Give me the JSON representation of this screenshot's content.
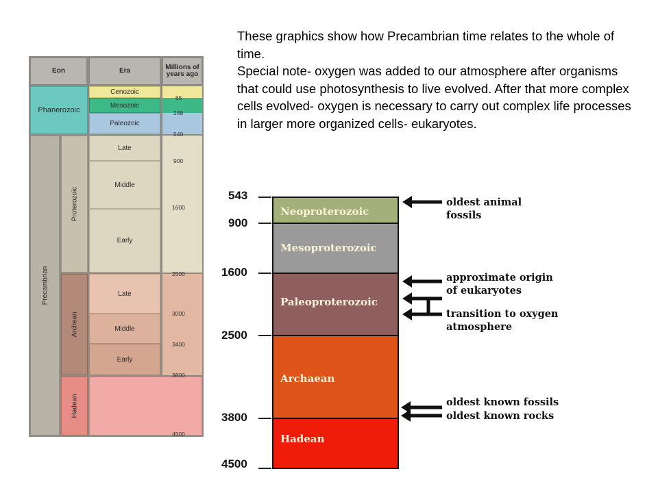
{
  "note": {
    "line1": "These graphics show how Precambrian time relates to the whole of time.",
    "line2": "Special note- oxygen was added to our atmosphere after organisms that could use photosynthesis to live evolved.  After that more complex cells evolved- oxygen is necessary to carry out complex life processes in larger more organized cells- eukaryotes."
  },
  "geo_table": {
    "headers": {
      "eon": "Eon",
      "era": "Era",
      "myr": "Millions of years ago"
    },
    "eons": {
      "phanerozoic": "Phanerozoic",
      "precambrian": "Precambrian"
    },
    "subeons": {
      "proterozoic": "Proterozoic",
      "archean": "Archean",
      "hadean": "Hadean"
    },
    "eras": {
      "cenozoic": "Cenozoic",
      "mesozoic": "Mesozoic",
      "paleozoic": "Paleozoic",
      "prot_late": "Late",
      "prot_middle": "Middle",
      "prot_early": "Early",
      "arch_late": "Late",
      "arch_middle": "Middle",
      "arch_early": "Early"
    },
    "years": {
      "y65": "65",
      "y248": "248",
      "y540": "540",
      "y900": "900",
      "y1600": "1600",
      "y2500": "2500",
      "y3000": "3000",
      "y3400": "3400",
      "y3800": "3800",
      "y4500": "4500"
    },
    "colors": {
      "phanerozoic": "#6cc9c2",
      "cenozoic": "#f1e79a",
      "mesozoic": "#3db887",
      "paleozoic": "#a9c7de",
      "proterozoic": "#ddd6c0",
      "archean": "#e8c4b0",
      "hadean": "#f2aaa6"
    }
  },
  "chart_data": {
    "type": "table",
    "axis_labels": [
      "543",
      "900",
      "1600",
      "2500",
      "3800",
      "4500"
    ],
    "bands": [
      {
        "name": "Neoproterozoic",
        "from": 543,
        "to": 900,
        "color": "#a4b07a"
      },
      {
        "name": "Mesoproterozoic",
        "from": 900,
        "to": 1600,
        "color": "#9a9a9a"
      },
      {
        "name": "Paleoproterozoic",
        "from": 1600,
        "to": 2500,
        "color": "#8f5e5f"
      },
      {
        "name": "Archaean",
        "from": 2500,
        "to": 3800,
        "color": "#de5419"
      },
      {
        "name": "Hadean",
        "from": 3800,
        "to": 4500,
        "color": "#f01c0a"
      }
    ],
    "annotations": [
      {
        "line1": "oldest animal",
        "line2": "fossils"
      },
      {
        "line1": "approximate origin",
        "line2": "of eukaryotes"
      },
      {
        "line1": "transition to oxygen",
        "line2": "atmosphere"
      },
      {
        "line1": "oldest known fossils",
        "line2": ""
      },
      {
        "line1": "oldest known rocks",
        "line2": ""
      }
    ]
  }
}
